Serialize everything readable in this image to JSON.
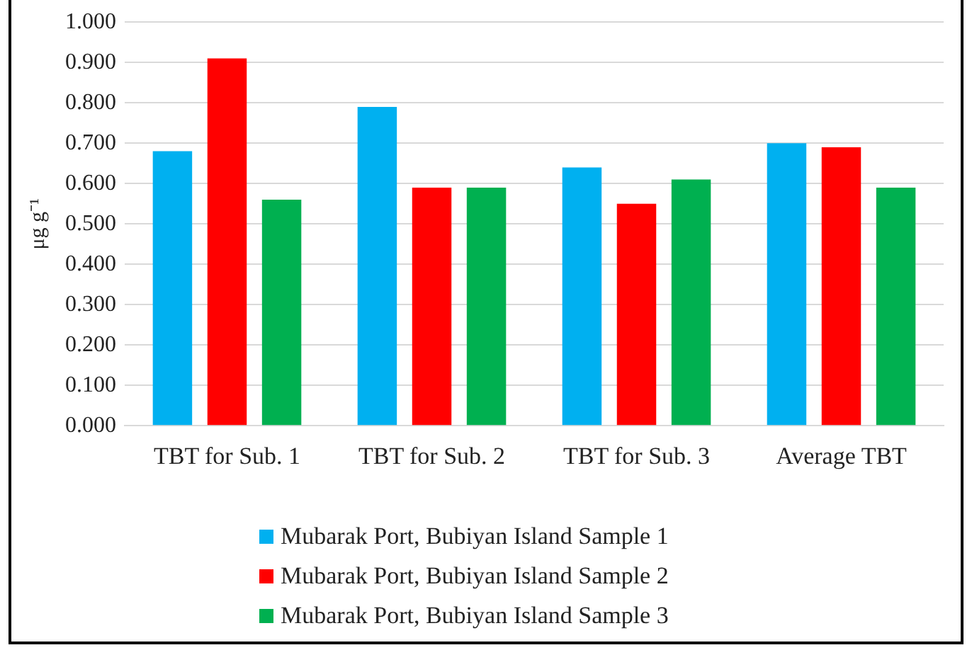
{
  "chart_data": {
    "type": "bar",
    "ylabel": "μg g⁻¹",
    "categories": [
      "TBT for Sub. 1",
      "TBT for Sub. 2",
      "TBT for Sub. 3",
      "Average TBT"
    ],
    "series": [
      {
        "name": "Mubarak Port, Bubiyan Island Sample 1",
        "color": "#00b0f0",
        "values": [
          0.68,
          0.79,
          0.64,
          0.7
        ]
      },
      {
        "name": "Mubarak Port, Bubiyan Island Sample 2",
        "color": "#ff0000",
        "values": [
          0.91,
          0.59,
          0.55,
          0.69
        ]
      },
      {
        "name": "Mubarak Port, Bubiyan Island Sample 3",
        "color": "#00b050",
        "values": [
          0.56,
          0.59,
          0.61,
          0.59
        ]
      }
    ],
    "ylim": [
      0,
      1
    ],
    "yticks": [
      {
        "value": 0,
        "label": "0.000"
      },
      {
        "value": 0.1,
        "label": "0.100"
      },
      {
        "value": 0.2,
        "label": "0.200"
      },
      {
        "value": 0.3,
        "label": "0.300"
      },
      {
        "value": 0.4,
        "label": "0.400"
      },
      {
        "value": 0.5,
        "label": "0.500"
      },
      {
        "value": 0.6,
        "label": "0.600"
      },
      {
        "value": 0.7,
        "label": "0.700"
      },
      {
        "value": 0.8,
        "label": "0.800"
      },
      {
        "value": 0.9,
        "label": "0.900"
      },
      {
        "value": 1,
        "label": "1.000"
      }
    ],
    "grid": "y",
    "legend": "bottom"
  }
}
